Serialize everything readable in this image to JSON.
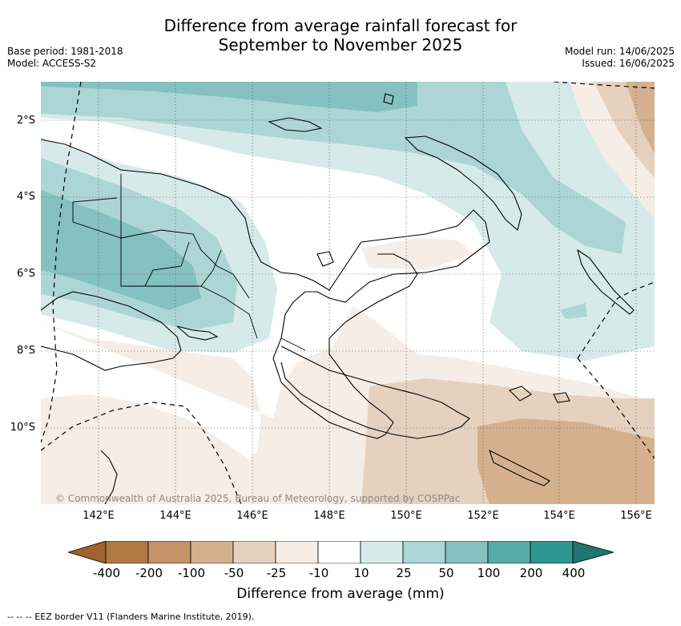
{
  "title": "Difference from average rainfall forecast for\nSeptember to November 2025",
  "title_lines": [
    "Difference from average rainfall forecast for",
    "September to November 2025"
  ],
  "meta_left": [
    "Base period: 1981-2018",
    "Model: ACCESS-S2"
  ],
  "meta_right": [
    "Model run: 14/06/2025",
    "Issued: 16/06/2025"
  ],
  "lat_labels": [
    "2°S",
    "4°S",
    "6°S",
    "8°S",
    "10°S"
  ],
  "lon_labels": [
    "142°E",
    "144°E",
    "146°E",
    "148°E",
    "150°E",
    "152°E",
    "154°E",
    "156°E"
  ],
  "copyright": "© Commonwealth of Australia 2025, Bureau of Meteorology, supported by COSPPac",
  "legend": {
    "title": "Difference from average (mm)",
    "ticks": [
      "-400",
      "-200",
      "-100",
      "-50",
      "-25",
      "-10",
      "10",
      "25",
      "50",
      "100",
      "200",
      "400"
    ],
    "colors": [
      "#a0632c",
      "#b07a45",
      "#c49468",
      "#d4b08e",
      "#e6d1bf",
      "#f5ede6",
      "#ffffff",
      "#d6ebe9",
      "#acd6d5",
      "#84c1c0",
      "#59abaa",
      "#2f9793",
      "#1f7571"
    ]
  },
  "eez_note": "--  --  -- EEZ border V11 (Flanders Marine Institute, 2019)."
}
